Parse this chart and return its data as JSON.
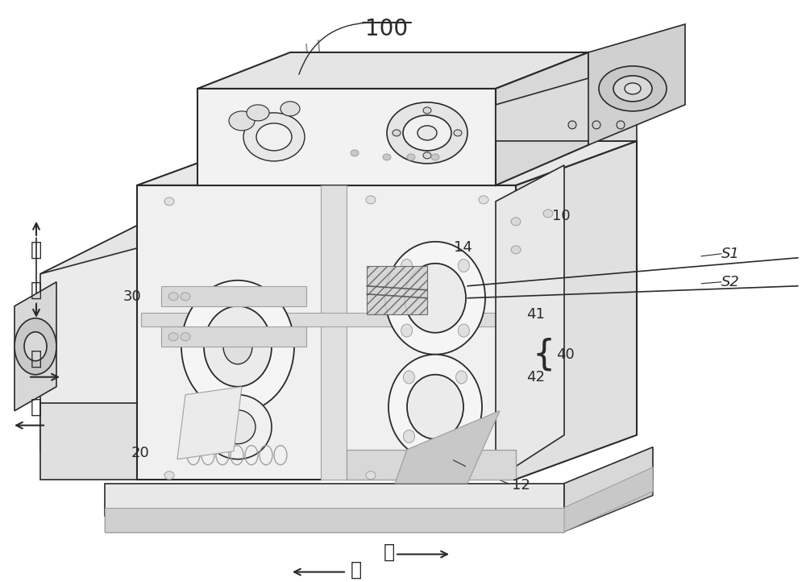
{
  "background_color": "#ffffff",
  "line_color": "#2a2a2a",
  "gray_light": "#c8c8c8",
  "gray_med": "#a0a0a0",
  "gray_dark": "#606060",
  "labels": [
    "100",
    "10",
    "12",
    "14",
    "20",
    "30",
    "40",
    "41",
    "42",
    "S1",
    "S2"
  ],
  "dir_up": "上",
  "dir_down": "下",
  "dir_right": "右",
  "dir_left": "左",
  "dir_front": "前",
  "dir_back": "后"
}
